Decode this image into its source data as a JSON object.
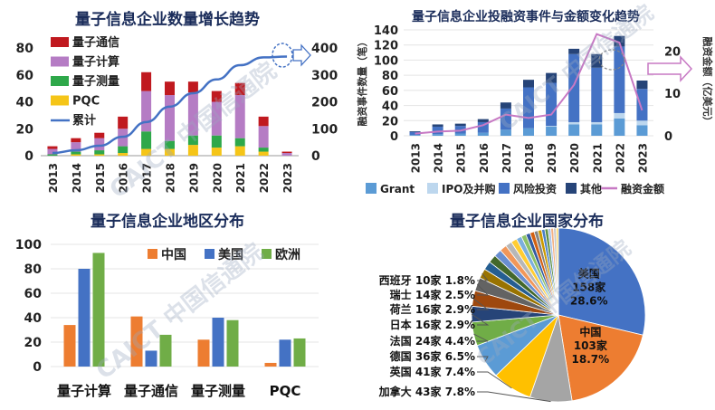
{
  "watermark": "CAICT 中国信通院",
  "chart_data": [
    {
      "type": "bar",
      "title": "量子信息企业数量增长趋势",
      "categories": [
        "2013",
        "2014",
        "2015",
        "2016",
        "2017",
        "2018",
        "2019",
        "2020",
        "2021",
        "2022",
        "2023"
      ],
      "series": [
        {
          "name": "PQC",
          "color": "#f5c518",
          "values": [
            0,
            1,
            1,
            2,
            5,
            5,
            8,
            6,
            7,
            3,
            0
          ]
        },
        {
          "name": "量子测量",
          "color": "#2ea84a",
          "values": [
            1,
            2,
            3,
            5,
            13,
            6,
            7,
            9,
            6,
            3,
            0
          ]
        },
        {
          "name": "量子计算",
          "color": "#b57cc4",
          "values": [
            4,
            7,
            9,
            13,
            30,
            34,
            32,
            25,
            32,
            16,
            2
          ]
        },
        {
          "name": "量子通信",
          "color": "#c0191f",
          "values": [
            2,
            3,
            4,
            9,
            14,
            10,
            8,
            8,
            9,
            7,
            1
          ]
        }
      ],
      "line": {
        "name": "累计",
        "color": "#4472c4",
        "values": [
          10,
          20,
          37,
          70,
          125,
          182,
          232,
          283,
          336,
          365,
          368
        ]
      },
      "ylim": [
        0,
        80
      ],
      "yticks": [
        "0",
        "20",
        "40",
        "60",
        "80"
      ],
      "y2lim": [
        0,
        400
      ],
      "y2ticks": [
        "0",
        "100",
        "200",
        "300",
        "400"
      ]
    },
    {
      "type": "bar",
      "title": "量子信息企业投融资事件与金额变化趋势",
      "categories": [
        "2013",
        "2014",
        "2015",
        "2016",
        "2017",
        "2018",
        "2019",
        "2020",
        "2021",
        "2022",
        "2023"
      ],
      "series": [
        {
          "name": "Grant",
          "color": "#5b9bd5",
          "values": [
            1,
            2,
            3,
            4,
            8,
            10,
            12,
            15,
            15,
            23,
            14
          ]
        },
        {
          "name": "IPO及并购",
          "color": "#bdd7ee",
          "values": [
            0,
            0,
            0,
            0,
            0,
            0,
            1,
            3,
            3,
            7,
            6
          ]
        },
        {
          "name": "风险投资",
          "color": "#4472c4",
          "values": [
            4,
            10,
            10,
            14,
            28,
            54,
            57,
            90,
            72,
            88,
            42
          ]
        },
        {
          "name": "其他",
          "color": "#264478",
          "values": [
            1,
            3,
            3,
            4,
            8,
            10,
            13,
            7,
            18,
            14,
            11
          ]
        }
      ],
      "line": {
        "name": "融资金额",
        "color": "#c779c4",
        "values": [
          0.5,
          1,
          1.2,
          2.5,
          5,
          4.2,
          5,
          12,
          24,
          22,
          6
        ]
      },
      "ylabel": "融资事件数量（笔）",
      "ylim": [
        0,
        140
      ],
      "yticks": [
        "0",
        "20",
        "40",
        "60",
        "80",
        "100",
        "120",
        "140"
      ],
      "y2label": "融资金额（亿美元）",
      "y2lim": [
        0,
        25
      ],
      "y2ticks": [
        "0",
        "10",
        "20"
      ]
    },
    {
      "type": "bar",
      "title": "量子信息企业地区分布",
      "categories": [
        "量子计算",
        "量子通信",
        "量子测量",
        "PQC"
      ],
      "series": [
        {
          "name": "中国",
          "color": "#ed7d31",
          "values": [
            34,
            41,
            22,
            3
          ]
        },
        {
          "name": "美国",
          "color": "#4472c4",
          "values": [
            80,
            13,
            40,
            22
          ]
        },
        {
          "name": "欧洲",
          "color": "#70ad47",
          "values": [
            93,
            26,
            38,
            23
          ]
        }
      ],
      "ylim": [
        0,
        100
      ],
      "yticks": [
        "0",
        "20",
        "40",
        "60",
        "80",
        "100"
      ]
    },
    {
      "type": "pie",
      "title": "量子信息企业国家分布",
      "slices": [
        {
          "name": "美国",
          "count": "158家",
          "pct": "28.6%",
          "value": 28.6,
          "color": "#4472c4"
        },
        {
          "name": "中国",
          "count": "103家",
          "pct": "18.7%",
          "value": 18.7,
          "color": "#ed7d31"
        },
        {
          "name": "加拿大",
          "count": "43家",
          "pct": "7.8%",
          "value": 7.8,
          "color": "#a5a5a5"
        },
        {
          "name": "英国",
          "count": "41家",
          "pct": "7.4%",
          "value": 7.4,
          "color": "#ffc000"
        },
        {
          "name": "德国",
          "count": "36家",
          "pct": "6.5%",
          "value": 6.5,
          "color": "#5b9bd5"
        },
        {
          "name": "法国",
          "count": "24家",
          "pct": "4.4%",
          "value": 4.4,
          "color": "#70ad47"
        },
        {
          "name": "日本",
          "count": "16家",
          "pct": "2.9%",
          "value": 2.9,
          "color": "#264478"
        },
        {
          "name": "荷兰",
          "count": "16家",
          "pct": "2.9%",
          "value": 2.9,
          "color": "#9e480e"
        },
        {
          "name": "瑞士",
          "count": "14家",
          "pct": "2.5%",
          "value": 2.5,
          "color": "#636363"
        },
        {
          "name": "西班牙",
          "count": "10家",
          "pct": "1.8%",
          "value": 1.8,
          "color": "#997300"
        },
        {
          "name": "",
          "value": 1.6,
          "color": "#255e91"
        },
        {
          "name": "",
          "value": 1.5,
          "color": "#43682b"
        },
        {
          "name": "",
          "value": 1.4,
          "color": "#698ed0"
        },
        {
          "name": "",
          "value": 1.3,
          "color": "#f1975a"
        },
        {
          "name": "",
          "value": 1.2,
          "color": "#b7b7b7"
        },
        {
          "name": "",
          "value": 1.1,
          "color": "#ffcd33"
        },
        {
          "name": "",
          "value": 1.0,
          "color": "#7cafdd"
        },
        {
          "name": "",
          "value": 0.9,
          "color": "#8cc168"
        },
        {
          "name": "",
          "value": 0.8,
          "color": "#335aa1"
        },
        {
          "name": "",
          "value": 0.8,
          "color": "#d26012"
        },
        {
          "name": "",
          "value": 0.7,
          "color": "#848484"
        },
        {
          "name": "",
          "value": 0.7,
          "color": "#cc9a00"
        },
        {
          "name": "",
          "value": 0.6,
          "color": "#4a7fc6"
        },
        {
          "name": "",
          "value": 0.6,
          "color": "#5f9144"
        },
        {
          "name": "",
          "value": 0.5,
          "color": "#a9c1e8"
        },
        {
          "name": "",
          "value": 0.5,
          "color": "#f4b183"
        },
        {
          "name": "",
          "value": 0.5,
          "color": "#c9c9c9"
        },
        {
          "name": "",
          "value": 0.4,
          "color": "#ffd966"
        }
      ]
    }
  ]
}
